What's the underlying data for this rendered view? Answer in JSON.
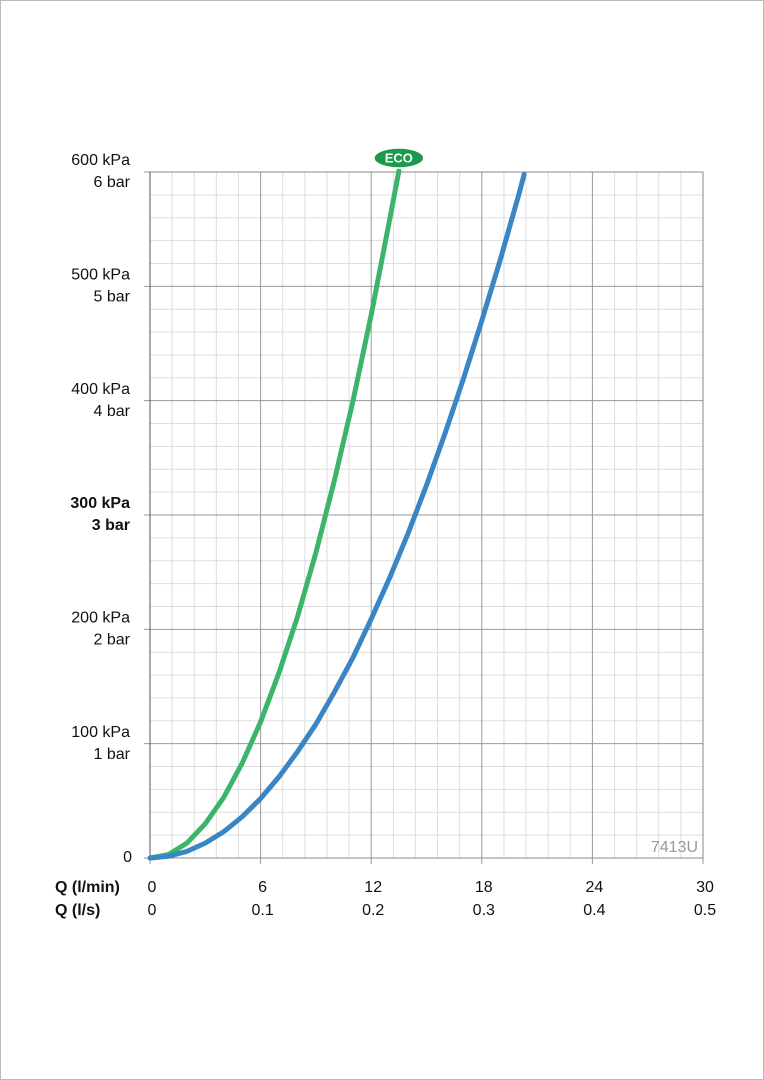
{
  "chart_data": {
    "type": "line",
    "xlabel": "Q (l/min)",
    "x2label": "Q (l/s)",
    "xlim": [
      0,
      30
    ],
    "xticks": [
      0,
      6,
      12,
      18,
      24,
      30
    ],
    "x2lim": [
      0,
      0.5
    ],
    "x2ticks": [
      0,
      0.1,
      0.2,
      0.3,
      0.4,
      0.5
    ],
    "ylim": [
      0,
      600
    ],
    "yticks": [
      0,
      {
        "value": 100,
        "label": "100 kPa"
      },
      {
        "value": 200,
        "label": "200 kPa"
      },
      {
        "value": 300,
        "label": "300 kPa"
      },
      {
        "value": 400,
        "label": "400 kPa"
      },
      {
        "value": 500,
        "label": "500 kPa"
      },
      {
        "value": 600,
        "label": "600 kPa"
      }
    ],
    "y2lim": [
      0,
      6
    ],
    "y2ticks": [
      {
        "value": 1,
        "label": "1 bar"
      },
      {
        "value": 2,
        "label": "2 bar"
      },
      {
        "value": 3,
        "label": "3 bar"
      },
      {
        "value": 4,
        "label": "4 bar"
      },
      {
        "value": 5,
        "label": "5 bar"
      },
      {
        "value": 6,
        "label": "6 bar"
      }
    ],
    "bold_ytick": 300,
    "grid": true,
    "minor_grid": 5,
    "code": "7413U",
    "series": [
      {
        "name": "ECO",
        "color": "#3cb56a",
        "x": [
          0,
          1,
          2,
          3,
          4,
          5,
          6,
          7,
          8,
          9,
          10,
          11,
          12,
          13,
          13.5
        ],
        "values": [
          0,
          3,
          13,
          30,
          53,
          83,
          119,
          162,
          211,
          267,
          330,
          399,
          475,
          558,
          601
        ]
      },
      {
        "color": "#3a86c4",
        "x": [
          0,
          1,
          2,
          3,
          4,
          5,
          6,
          7,
          8,
          9,
          10,
          11,
          12,
          13,
          14,
          15,
          16,
          17,
          18,
          19,
          20,
          20.3
        ],
        "values": [
          0,
          1.5,
          5.8,
          13,
          23,
          36,
          52,
          71,
          93,
          117,
          145,
          175,
          209,
          245,
          284,
          326,
          371,
          419,
          470,
          523,
          580,
          598
        ]
      }
    ]
  }
}
